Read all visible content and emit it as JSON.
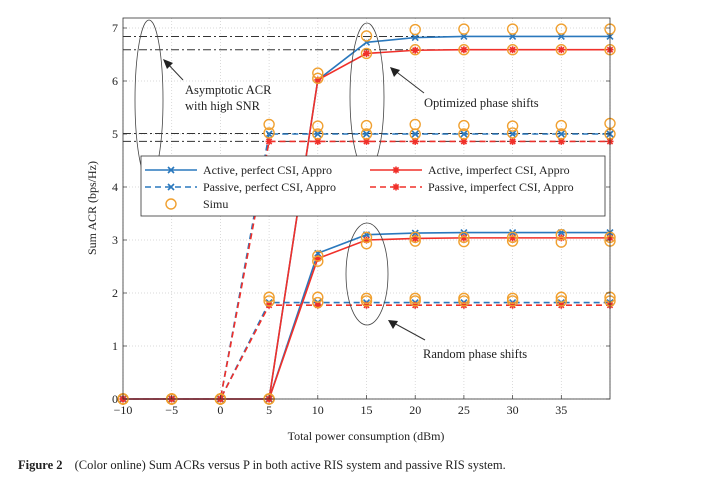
{
  "chart_data": {
    "type": "line",
    "xlabel": "Total power consumption (dBm)",
    "ylabel": "Sum ACR (bps/Hz)",
    "xlim": [
      -10,
      40
    ],
    "ylim": [
      0,
      7.2
    ],
    "xticks": [
      -10,
      -5,
      0,
      5,
      10,
      15,
      20,
      25,
      30,
      35
    ],
    "yticks": [
      0,
      1,
      2,
      3,
      4,
      5,
      6,
      7
    ],
    "grid": true,
    "legend_placement": "center",
    "x": [
      -10,
      -5,
      0,
      5,
      10,
      15,
      20,
      25,
      30,
      35,
      40
    ],
    "series": [
      {
        "name": "Active, perfect CSI, Appro",
        "group": "optimized",
        "color": "#2a78bd",
        "dash": "solid",
        "marker": "x",
        "values": [
          0,
          0,
          0,
          0,
          6.02,
          6.73,
          6.82,
          6.84,
          6.84,
          6.84,
          6.84
        ]
      },
      {
        "name": "Active, imperfect CSI, Appro",
        "group": "optimized",
        "color": "#f0302a",
        "dash": "solid",
        "marker": "*",
        "values": [
          0,
          0,
          0,
          0,
          6.02,
          6.52,
          6.58,
          6.59,
          6.59,
          6.59,
          6.59
        ]
      },
      {
        "name": "Passive, perfect CSI, Appro",
        "group": "optimized",
        "color": "#2a78bd",
        "dash": "dashed",
        "marker": "x",
        "values": [
          0,
          0,
          0,
          5.0,
          5.0,
          5.0,
          5.0,
          5.0,
          5.0,
          5.0,
          5.0
        ]
      },
      {
        "name": "Passive, imperfect CSI, Appro",
        "group": "optimized",
        "color": "#f0302a",
        "dash": "dashed",
        "marker": "*",
        "values": [
          0,
          0,
          0,
          4.86,
          4.86,
          4.86,
          4.86,
          4.86,
          4.86,
          4.86,
          4.86
        ]
      },
      {
        "name": "Active, perfect CSI, Appro",
        "group": "random",
        "color": "#2a78bd",
        "dash": "solid",
        "marker": "x",
        "values": [
          0,
          0,
          0,
          0,
          2.75,
          3.1,
          3.13,
          3.14,
          3.14,
          3.14,
          3.14
        ]
      },
      {
        "name": "Active, imperfect CSI, Appro",
        "group": "random",
        "color": "#f0302a",
        "dash": "solid",
        "marker": "*",
        "values": [
          0,
          0,
          0,
          0,
          2.65,
          3.0,
          3.03,
          3.04,
          3.04,
          3.04,
          3.04
        ]
      },
      {
        "name": "Passive, perfect CSI, Appro",
        "group": "random",
        "color": "#2a78bd",
        "dash": "dashed",
        "marker": "x",
        "values": [
          0,
          0,
          0,
          1.82,
          1.82,
          1.82,
          1.82,
          1.82,
          1.82,
          1.82,
          1.82
        ]
      },
      {
        "name": "Passive, imperfect CSI, Appro",
        "group": "random",
        "color": "#f0302a",
        "dash": "dashed",
        "marker": "*",
        "values": [
          0,
          0,
          0,
          1.77,
          1.77,
          1.77,
          1.77,
          1.77,
          1.77,
          1.77,
          1.77
        ]
      }
    ],
    "simu": {
      "name": "Simu",
      "color": "#f0a030",
      "series": [
        [
          0,
          0,
          0,
          0,
          6.15,
          6.85,
          6.97,
          6.98,
          6.98,
          6.98,
          6.98
        ],
        [
          0,
          0,
          0,
          0,
          6.05,
          6.52,
          6.59,
          6.59,
          6.59,
          6.59,
          6.59
        ],
        [
          0,
          0,
          0,
          5.18,
          5.15,
          5.16,
          5.18,
          5.16,
          5.15,
          5.16,
          5.2
        ],
        [
          0,
          0,
          0,
          5.02,
          5.0,
          5.0,
          5.0,
          5.0,
          5.02,
          5.0,
          5.0
        ],
        [
          0,
          0,
          0,
          0,
          2.7,
          3.05,
          3.05,
          3.05,
          3.05,
          3.1,
          3.05
        ],
        [
          0,
          0,
          0,
          0,
          2.6,
          2.93,
          2.98,
          2.97,
          2.98,
          2.96,
          2.98
        ],
        [
          0,
          0,
          0,
          1.92,
          1.92,
          1.9,
          1.9,
          1.9,
          1.9,
          1.92,
          1.92
        ],
        [
          0,
          0,
          0,
          1.85,
          1.82,
          1.85,
          1.85,
          1.85,
          1.85,
          1.85,
          1.85
        ]
      ]
    },
    "asymptotes": [
      6.84,
      6.59,
      5.01,
      4.86
    ],
    "annotations": {
      "asymptotic": [
        "Asymptotic ACR",
        "with high SNR"
      ],
      "optimized": "Optimized phase shifts",
      "random": "Random phase shifts"
    }
  },
  "caption": {
    "label": "Figure 2",
    "text": "(Color online) Sum ACRs versus P in both active RIS system and passive RIS system."
  }
}
